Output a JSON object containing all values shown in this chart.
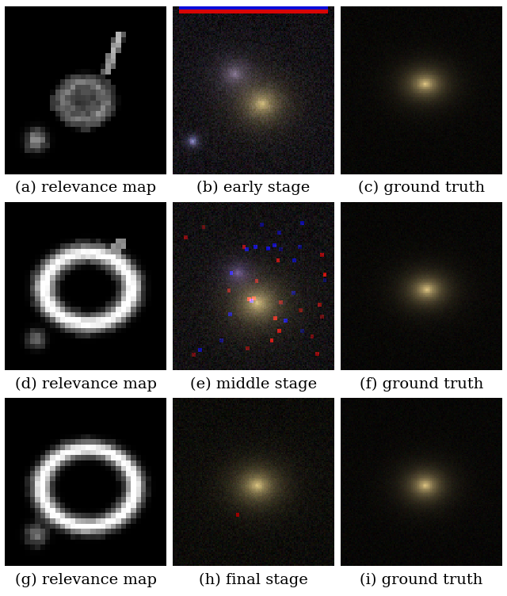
{
  "captions": [
    "(a) relevance map",
    "(b) early stage",
    "(c) ground truth",
    "(d) relevance map",
    "(e) middle stage",
    "(f) ground truth",
    "(g) relevance map",
    "(h) final stage",
    "(i) ground truth"
  ],
  "background_color": "#ffffff",
  "caption_fontsize": 14,
  "nrows": 3,
  "ncols": 3,
  "figsize": [
    6.4,
    7.52
  ]
}
